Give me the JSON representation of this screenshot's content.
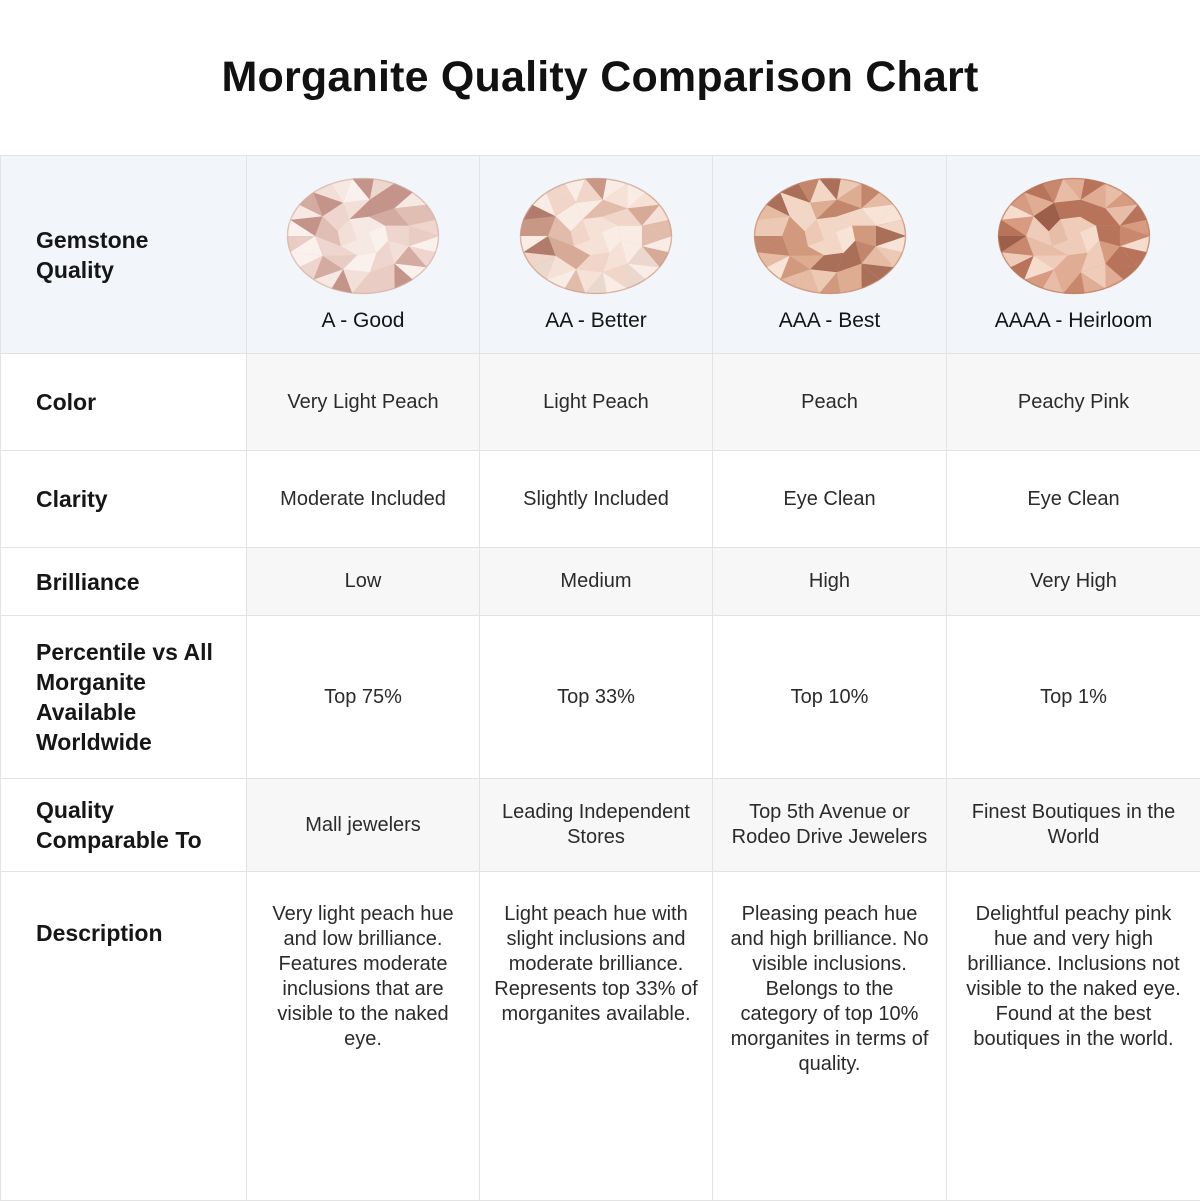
{
  "title": "Morganite Quality Comparison Chart",
  "palette": {
    "header_bg": "#f2f6fb",
    "stripe_bg": "#f7f7f7",
    "white_bg": "#ffffff",
    "border": "#e3e3e3",
    "label_text": "#161616",
    "body_text": "#2b2b2b"
  },
  "table": {
    "corner_label": "Gemstone Quality",
    "grades": [
      {
        "label": "A - Good",
        "gem_shades": [
          "#faf1ed",
          "#f6e8e3",
          "#f2dfd8",
          "#eed5cd",
          "#e9ccc3",
          "#e0beb4",
          "#d3aba0",
          "#c4948a"
        ]
      },
      {
        "label": "AA - Better",
        "gem_shades": [
          "#f9ece4",
          "#f5e1d6",
          "#f0d5c8",
          "#ead8ce",
          "#e2bcab",
          "#d7aa97",
          "#c99786",
          "#b27c6d"
        ]
      },
      {
        "label": "AAA - Best",
        "gem_shades": [
          "#f7e4d7",
          "#f2d7c6",
          "#ecc9b5",
          "#e5bba3",
          "#ddac91",
          "#d19a7e",
          "#c2866c",
          "#aa6f58"
        ]
      },
      {
        "label": "AAAA - Heirloom",
        "gem_shades": [
          "#f5dccd",
          "#efccb9",
          "#e8bda7",
          "#e0ac94",
          "#d69b81",
          "#c8886e",
          "#b7745a",
          "#9d5f49"
        ]
      }
    ],
    "rows": [
      {
        "label": "Color",
        "values": [
          "Very Light Peach",
          "Light Peach",
          "Peach",
          "Peachy Pink"
        ]
      },
      {
        "label": "Clarity",
        "values": [
          "Moderate Included",
          "Slightly Included",
          "Eye Clean",
          "Eye Clean"
        ]
      },
      {
        "label": "Brilliance",
        "values": [
          "Low",
          "Medium",
          "High",
          "Very High"
        ]
      },
      {
        "label": "Percentile vs All Morganite Available Worldwide",
        "values": [
          "Top 75%",
          "Top 33%",
          "Top 10%",
          "Top 1%"
        ]
      },
      {
        "label": "Quality Comparable To",
        "values": [
          "Mall jewelers",
          "Leading Independent Stores",
          "Top 5th Avenue or Rodeo Drive Jewelers",
          "Finest Boutiques in the World"
        ]
      },
      {
        "label": "Description",
        "values": [
          "Very light peach hue and low brilliance. Features moderate inclusions that are visible to the naked eye.",
          "Light peach hue with slight inclusions and moderate brilliance. Represents top 33% of morganites available.",
          "Pleasing peach hue and high brilliance. No visible inclusions. Belongs to the category of top 10% morganites in terms of quality.",
          "Delightful peachy pink hue and very high brilliance. Inclusions not visible to the naked eye. Found at the best boutiques in the world."
        ]
      }
    ]
  },
  "chart_data": {
    "type": "table",
    "title": "Morganite Quality Comparison Chart",
    "columns": [
      "Gemstone Quality",
      "A - Good",
      "AA - Better",
      "AAA - Best",
      "AAAA - Heirloom"
    ],
    "rows": [
      [
        "Color",
        "Very Light Peach",
        "Light Peach",
        "Peach",
        "Peachy Pink"
      ],
      [
        "Clarity",
        "Moderate Included",
        "Slightly Included",
        "Eye Clean",
        "Eye Clean"
      ],
      [
        "Brilliance",
        "Low",
        "Medium",
        "High",
        "Very High"
      ],
      [
        "Percentile vs All Morganite Available Worldwide",
        "Top 75%",
        "Top 33%",
        "Top 10%",
        "Top 1%"
      ],
      [
        "Quality Comparable To",
        "Mall jewelers",
        "Leading Independent Stores",
        "Top 5th Avenue or Rodeo Drive Jewelers",
        "Finest Boutiques in the World"
      ],
      [
        "Description",
        "Very light peach hue and low brilliance. Features moderate inclusions that are visible to the naked eye.",
        "Light peach hue with slight inclusions and moderate brilliance. Represents top 33% of morganites available.",
        "Pleasing peach hue and high brilliance. No visible inclusions. Belongs to the category of top 10% morganites in terms of quality.",
        "Delightful peachy pink hue and very high brilliance. Inclusions not visible to the naked eye. Found at the best boutiques in the world."
      ]
    ]
  }
}
